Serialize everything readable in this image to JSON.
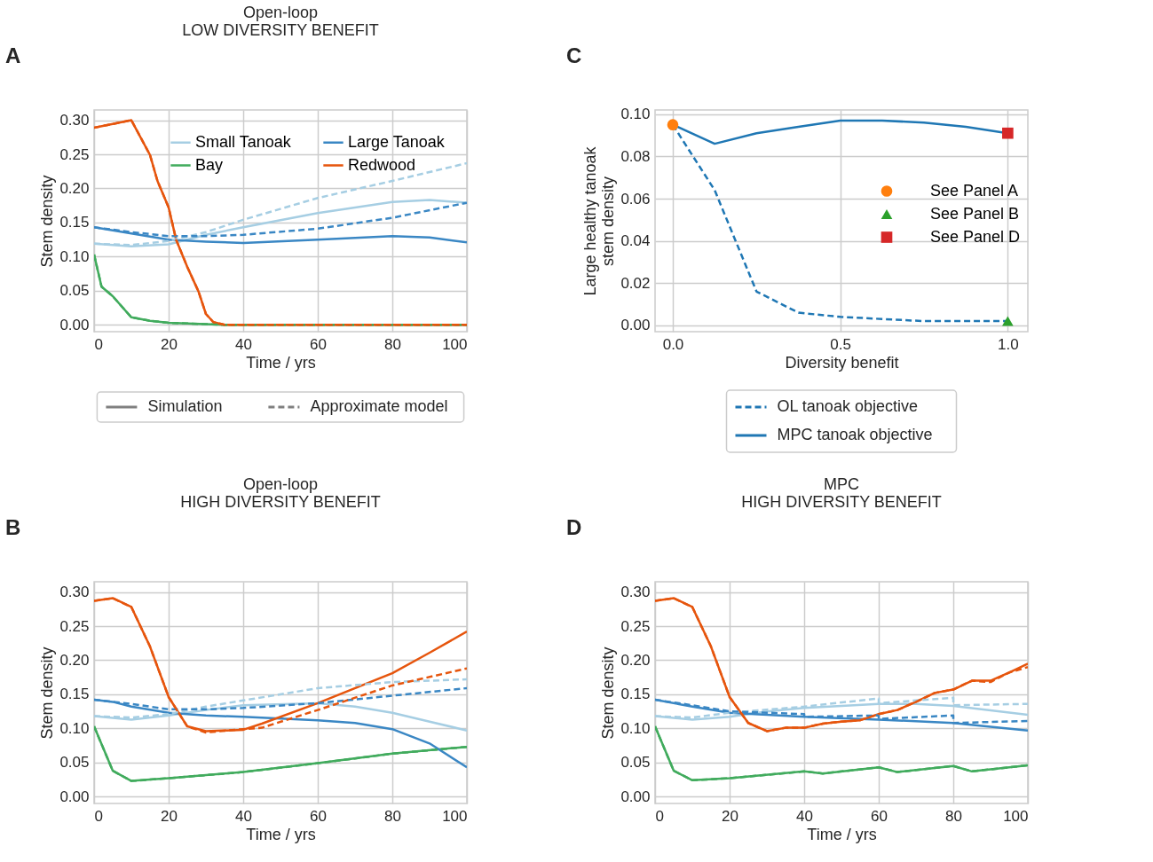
{
  "chart_data": [
    {
      "type": "line",
      "title": "Open-loop",
      "subtitle": "LOW DIVERSITY BENEFIT",
      "xlabel": "Time / yrs",
      "ylabel": "Stem density",
      "annotations": [
        "A",
        "Simulation",
        "Approximate model"
      ],
      "xlim": [
        0,
        100
      ],
      "ylim": [
        -0.01,
        0.315
      ],
      "xticks": [
        0,
        20,
        40,
        60,
        80,
        100
      ],
      "yticks": [
        {
          "value": 0,
          "label": "0.00"
        },
        {
          "value": 0.05,
          "label": "0.05"
        },
        {
          "value": 0.1,
          "label": "0.10"
        },
        {
          "value": 0.15,
          "label": "0.15"
        },
        {
          "value": 0.2,
          "label": "0.20"
        },
        {
          "value": 0.25,
          "label": "0.25"
        },
        {
          "value": 0.3,
          "label": "0.30"
        }
      ],
      "grid": true,
      "legend": "top right",
      "series": [
        {
          "name": "Small Tanoak",
          "color": "#a6cee3",
          "line_style": "solid",
          "x": [
            0,
            10,
            20,
            30,
            40,
            60,
            80,
            90,
            100
          ],
          "values": [
            0.119,
            0.115,
            0.118,
            0.132,
            0.143,
            0.164,
            0.18,
            0.183,
            0.179
          ]
        },
        {
          "color": "#a6cee3",
          "line_style": "dashed",
          "x": [
            0,
            10,
            20,
            30,
            40,
            60,
            80,
            100
          ],
          "values": [
            0.119,
            0.117,
            0.123,
            0.136,
            0.154,
            0.186,
            0.211,
            0.237
          ]
        },
        {
          "name": "Bay",
          "color": "#41ab5d",
          "line_style": "solid",
          "x": [
            0,
            2,
            5,
            10,
            15,
            20,
            30,
            35,
            100
          ],
          "values": [
            0.103,
            0.056,
            0.042,
            0.011,
            0.006,
            0.003,
            0.001,
            0,
            0
          ]
        },
        {
          "color": "#41ab5d",
          "line_style": "dashed",
          "x": [
            0,
            2,
            5,
            10,
            15,
            20,
            30,
            35,
            100
          ],
          "values": [
            0.103,
            0.056,
            0.042,
            0.011,
            0.006,
            0.003,
            0.001,
            0,
            0
          ]
        },
        {
          "name": "Large Tanoak",
          "color": "#3a87c4",
          "line_style": "solid",
          "x": [
            0,
            10,
            20,
            30,
            40,
            60,
            80,
            90,
            100
          ],
          "values": [
            0.143,
            0.134,
            0.125,
            0.122,
            0.12,
            0.125,
            0.13,
            0.128,
            0.121
          ]
        },
        {
          "color": "#3a87c4",
          "line_style": "dashed",
          "x": [
            0,
            10,
            20,
            30,
            40,
            60,
            80,
            100
          ],
          "values": [
            0.143,
            0.136,
            0.13,
            0.13,
            0.132,
            0.141,
            0.157,
            0.179
          ]
        },
        {
          "name": "Redwood",
          "color": "#e6550d",
          "line_style": "solid",
          "x": [
            0,
            10,
            15,
            17,
            20,
            22,
            25,
            28,
            30,
            32,
            35,
            100
          ],
          "values": [
            0.289,
            0.3,
            0.249,
            0.211,
            0.172,
            0.125,
            0.085,
            0.049,
            0.016,
            0.004,
            0,
            0
          ]
        },
        {
          "color": "#e6550d",
          "line_style": "dashed",
          "x": [
            0,
            10,
            15,
            17,
            20,
            22,
            25,
            28,
            30,
            32,
            35,
            100
          ],
          "values": [
            0.289,
            0.3,
            0.249,
            0.211,
            0.172,
            0.125,
            0.085,
            0.049,
            0.016,
            0.004,
            0,
            0
          ]
        }
      ]
    },
    {
      "type": "line",
      "xlabel": "Diversity benefit",
      "ylabel": "Large healthy tanoak stem density",
      "annotations": [
        "C"
      ],
      "xlim": [
        -0.053,
        1.06
      ],
      "ylim": [
        -0.003,
        0.102
      ],
      "xticks": [
        {
          "value": 0,
          "label": "0.0"
        },
        {
          "value": 0.5,
          "label": "0.5"
        },
        {
          "value": 1,
          "label": "1.0"
        }
      ],
      "yticks": [
        {
          "value": 0,
          "label": "0.00"
        },
        {
          "value": 0.02,
          "label": "0.02"
        },
        {
          "value": 0.04,
          "label": "0.04"
        },
        {
          "value": 0.06,
          "label": "0.06"
        },
        {
          "value": 0.08,
          "label": "0.08"
        },
        {
          "value": 0.1,
          "label": "0.10"
        }
      ],
      "grid": true,
      "legend": "bottom",
      "series": [
        {
          "name": "OL tanoak objective",
          "color": "#1f77b4",
          "line_style": "dashed",
          "x": [
            0,
            0.125,
            0.25,
            0.375,
            0.5,
            0.625,
            0.75,
            0.875,
            1
          ],
          "values": [
            0.095,
            0.064,
            0.016,
            0.006,
            0.004,
            0.003,
            0.002,
            0.002,
            0.002
          ]
        },
        {
          "name": "MPC tanoak objective",
          "color": "#1f77b4",
          "line_style": "solid",
          "x": [
            0,
            0.125,
            0.25,
            0.375,
            0.5,
            0.625,
            0.75,
            0.875,
            1
          ],
          "values": [
            0.095,
            0.086,
            0.091,
            0.094,
            0.097,
            0.097,
            0.096,
            0.094,
            0.091
          ]
        },
        {
          "type": "scatter",
          "name": "See Panel A",
          "color": "#ff7f0e",
          "marker": "circle",
          "x": [
            0
          ],
          "values": [
            0.095
          ]
        },
        {
          "type": "scatter",
          "name": "See Panel B",
          "color": "#2ca02c",
          "marker": "triangle",
          "x": [
            1
          ],
          "values": [
            0.002
          ]
        },
        {
          "type": "scatter",
          "name": "See Panel D",
          "color": "#d62728",
          "marker": "square",
          "x": [
            1
          ],
          "values": [
            0.091
          ]
        }
      ]
    },
    {
      "type": "line",
      "title": "Open-loop",
      "subtitle": "HIGH DIVERSITY BENEFIT",
      "xlabel": "Time / yrs",
      "ylabel": "Stem density",
      "annotations": [
        "B"
      ],
      "xlim": [
        0,
        100
      ],
      "ylim": [
        -0.01,
        0.315
      ],
      "xticks": [
        0,
        20,
        40,
        60,
        80,
        100
      ],
      "yticks": [
        {
          "value": 0,
          "label": "0.00"
        },
        {
          "value": 0.05,
          "label": "0.05"
        },
        {
          "value": 0.1,
          "label": "0.10"
        },
        {
          "value": 0.15,
          "label": "0.15"
        },
        {
          "value": 0.2,
          "label": "0.20"
        },
        {
          "value": 0.25,
          "label": "0.25"
        },
        {
          "value": 0.3,
          "label": "0.30"
        }
      ],
      "grid": true,
      "series": [
        {
          "color": "#a6cee3",
          "line_style": "solid",
          "x": [
            0,
            10,
            20,
            30,
            40,
            60,
            70,
            80,
            90,
            100
          ],
          "values": [
            0.118,
            0.113,
            0.119,
            0.127,
            0.134,
            0.137,
            0.132,
            0.123,
            0.11,
            0.097
          ]
        },
        {
          "color": "#a6cee3",
          "line_style": "dashed",
          "x": [
            0,
            10,
            20,
            30,
            40,
            60,
            80,
            100
          ],
          "values": [
            0.118,
            0.116,
            0.121,
            0.132,
            0.141,
            0.159,
            0.168,
            0.172
          ]
        },
        {
          "color": "#41ab5d",
          "line_style": "solid",
          "x": [
            0,
            5,
            10,
            20,
            40,
            60,
            80,
            100
          ],
          "values": [
            0.103,
            0.038,
            0.023,
            0.027,
            0.036,
            0.049,
            0.063,
            0.073
          ]
        },
        {
          "color": "#41ab5d",
          "line_style": "dashed",
          "x": [
            0,
            5,
            10,
            20,
            40,
            60,
            80,
            100
          ],
          "values": [
            0.103,
            0.038,
            0.023,
            0.027,
            0.036,
            0.049,
            0.063,
            0.073
          ]
        },
        {
          "color": "#3a87c4",
          "line_style": "solid",
          "x": [
            0,
            5,
            10,
            20,
            30,
            40,
            60,
            70,
            80,
            90,
            100
          ],
          "values": [
            0.142,
            0.139,
            0.132,
            0.123,
            0.119,
            0.117,
            0.112,
            0.108,
            0.099,
            0.078,
            0.043
          ]
        },
        {
          "color": "#3a87c4",
          "line_style": "dashed",
          "x": [
            0,
            10,
            20,
            30,
            40,
            60,
            80,
            100
          ],
          "values": [
            0.142,
            0.136,
            0.128,
            0.128,
            0.13,
            0.137,
            0.148,
            0.159
          ]
        },
        {
          "color": "#e6550d",
          "line_style": "solid",
          "x": [
            0,
            5,
            10,
            15,
            20,
            25,
            30,
            40,
            45,
            60,
            80,
            90,
            100
          ],
          "values": [
            0.287,
            0.291,
            0.278,
            0.22,
            0.146,
            0.103,
            0.096,
            0.098,
            0.107,
            0.137,
            0.181,
            0.211,
            0.242
          ]
        },
        {
          "color": "#e6550d",
          "line_style": "dashed",
          "x": [
            0,
            5,
            10,
            15,
            20,
            25,
            30,
            40,
            45,
            60,
            80,
            100
          ],
          "values": [
            0.287,
            0.291,
            0.278,
            0.22,
            0.146,
            0.103,
            0.094,
            0.099,
            0.101,
            0.127,
            0.163,
            0.188
          ]
        }
      ]
    },
    {
      "type": "line",
      "title": "MPC",
      "subtitle": "HIGH DIVERSITY BENEFIT",
      "xlabel": "Time / yrs",
      "ylabel": "Stem density",
      "annotations": [
        "D"
      ],
      "xlim": [
        0,
        100
      ],
      "ylim": [
        -0.01,
        0.315
      ],
      "xticks": [
        0,
        20,
        40,
        60,
        80,
        100
      ],
      "yticks": [
        {
          "value": 0,
          "label": "0.00"
        },
        {
          "value": 0.05,
          "label": "0.05"
        },
        {
          "value": 0.1,
          "label": "0.10"
        },
        {
          "value": 0.15,
          "label": "0.15"
        },
        {
          "value": 0.2,
          "label": "0.20"
        },
        {
          "value": 0.25,
          "label": "0.25"
        },
        {
          "value": 0.3,
          "label": "0.30"
        }
      ],
      "grid": true,
      "series": [
        {
          "color": "#a6cee3",
          "line_style": "solid",
          "x": [
            0,
            10,
            20,
            30,
            40,
            60,
            70,
            80,
            100
          ],
          "values": [
            0.118,
            0.113,
            0.117,
            0.125,
            0.13,
            0.136,
            0.136,
            0.133,
            0.12
          ]
        },
        {
          "color": "#a6cee3",
          "line_style": "dashed",
          "x": [
            0,
            10,
            20,
            40,
            60,
            60,
            80,
            80,
            100
          ],
          "values": [
            0.118,
            0.116,
            0.123,
            0.132,
            0.144,
            0.137,
            0.145,
            0.134,
            0.136
          ]
        },
        {
          "color": "#41ab5d",
          "line_style": "solid",
          "x": [
            0,
            5,
            10,
            20,
            40,
            45,
            60,
            65,
            80,
            85,
            100
          ],
          "values": [
            0.103,
            0.038,
            0.024,
            0.027,
            0.037,
            0.034,
            0.043,
            0.036,
            0.045,
            0.037,
            0.046
          ]
        },
        {
          "color": "#41ab5d",
          "line_style": "dashed",
          "x": [
            0,
            5,
            10,
            20,
            40,
            45,
            60,
            65,
            80,
            85,
            100
          ],
          "values": [
            0.103,
            0.038,
            0.024,
            0.027,
            0.037,
            0.034,
            0.043,
            0.036,
            0.045,
            0.037,
            0.046
          ]
        },
        {
          "color": "#3a87c4",
          "line_style": "solid",
          "x": [
            0,
            10,
            20,
            40,
            60,
            80,
            100
          ],
          "values": [
            0.142,
            0.132,
            0.123,
            0.117,
            0.113,
            0.108,
            0.097
          ]
        },
        {
          "color": "#3a87c4",
          "line_style": "dashed",
          "x": [
            0,
            10,
            20,
            40,
            40,
            60,
            60,
            80,
            80,
            100
          ],
          "values": [
            0.142,
            0.134,
            0.125,
            0.121,
            0.117,
            0.119,
            0.114,
            0.119,
            0.108,
            0.111
          ]
        },
        {
          "color": "#e6550d",
          "line_style": "solid",
          "x": [
            0,
            5,
            10,
            15,
            20,
            25,
            30,
            35,
            40,
            45,
            50,
            55,
            60,
            65,
            70,
            75,
            80,
            85,
            90,
            95,
            100
          ],
          "values": [
            0.287,
            0.291,
            0.278,
            0.22,
            0.146,
            0.108,
            0.096,
            0.101,
            0.101,
            0.107,
            0.11,
            0.112,
            0.121,
            0.127,
            0.139,
            0.152,
            0.157,
            0.17,
            0.17,
            0.182,
            0.195
          ]
        },
        {
          "color": "#e6550d",
          "line_style": "dashed",
          "x": [
            0,
            5,
            10,
            15,
            20,
            25,
            30,
            35,
            40,
            45,
            50,
            55,
            60,
            65,
            70,
            75,
            80,
            85,
            90,
            95,
            100
          ],
          "values": [
            0.287,
            0.291,
            0.278,
            0.22,
            0.146,
            0.108,
            0.096,
            0.101,
            0.101,
            0.107,
            0.11,
            0.112,
            0.121,
            0.127,
            0.139,
            0.152,
            0.157,
            0.17,
            0.168,
            0.182,
            0.19
          ]
        }
      ]
    }
  ]
}
